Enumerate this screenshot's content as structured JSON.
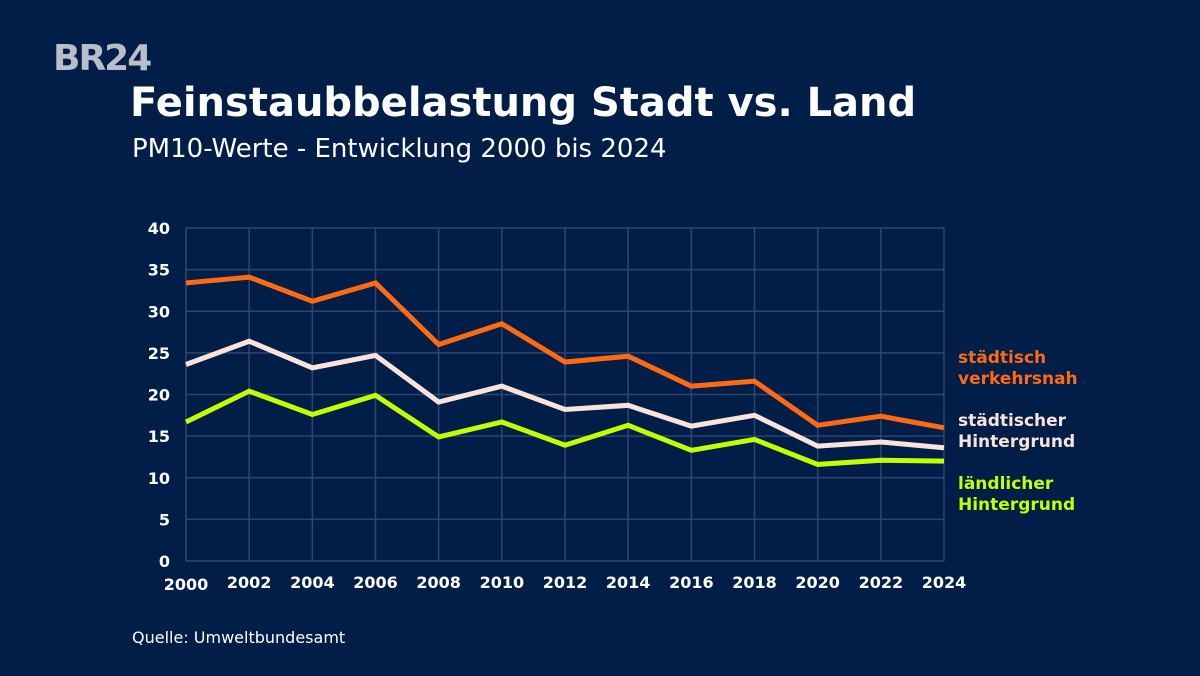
{
  "logo": "BR24",
  "title": "Feinstaubbelastung Stadt vs. Land",
  "subtitle": "PM10-Werte - Entwicklung 2000 bis 2024",
  "source": "Quelle: Umweltbundesamt",
  "chart_data": {
    "type": "line",
    "title": "Feinstaubbelastung Stadt vs. Land",
    "subtitle": "PM10-Werte - Entwicklung 2000 bis 2024",
    "x": [
      2000,
      2002,
      2004,
      2006,
      2008,
      2010,
      2012,
      2014,
      2016,
      2018,
      2020,
      2022,
      2024
    ],
    "xlim": [
      2000,
      2024
    ],
    "ylim": [
      0,
      40
    ],
    "yticks": [
      0,
      5,
      10,
      15,
      20,
      25,
      30,
      35,
      40
    ],
    "grid": true,
    "legend": "right, labels at line ends",
    "series": [
      {
        "name": "städtisch verkehrsnah",
        "label_lines": [
          "städtisch",
          "verkehrsnah"
        ],
        "color": "#ff6a13",
        "values": [
          33.4,
          34.1,
          31.2,
          33.4,
          26.0,
          28.5,
          23.9,
          24.6,
          21.0,
          21.6,
          16.3,
          17.4,
          16.0
        ]
      },
      {
        "name": "städtischer Hintergrund",
        "label_lines": [
          "städtischer",
          "Hintergrund"
        ],
        "color": "#fbe3da",
        "values": [
          23.6,
          26.4,
          23.2,
          24.7,
          19.1,
          21.0,
          18.2,
          18.7,
          16.2,
          17.5,
          13.8,
          14.3,
          13.6
        ]
      },
      {
        "name": "ländlicher Hintergrund",
        "label_lines": [
          "ländlicher",
          "Hintergrund"
        ],
        "color": "#c2ff00",
        "values": [
          16.7,
          20.4,
          17.6,
          19.9,
          14.9,
          16.7,
          13.9,
          16.3,
          13.3,
          14.6,
          11.6,
          12.1,
          12.0
        ]
      }
    ]
  }
}
